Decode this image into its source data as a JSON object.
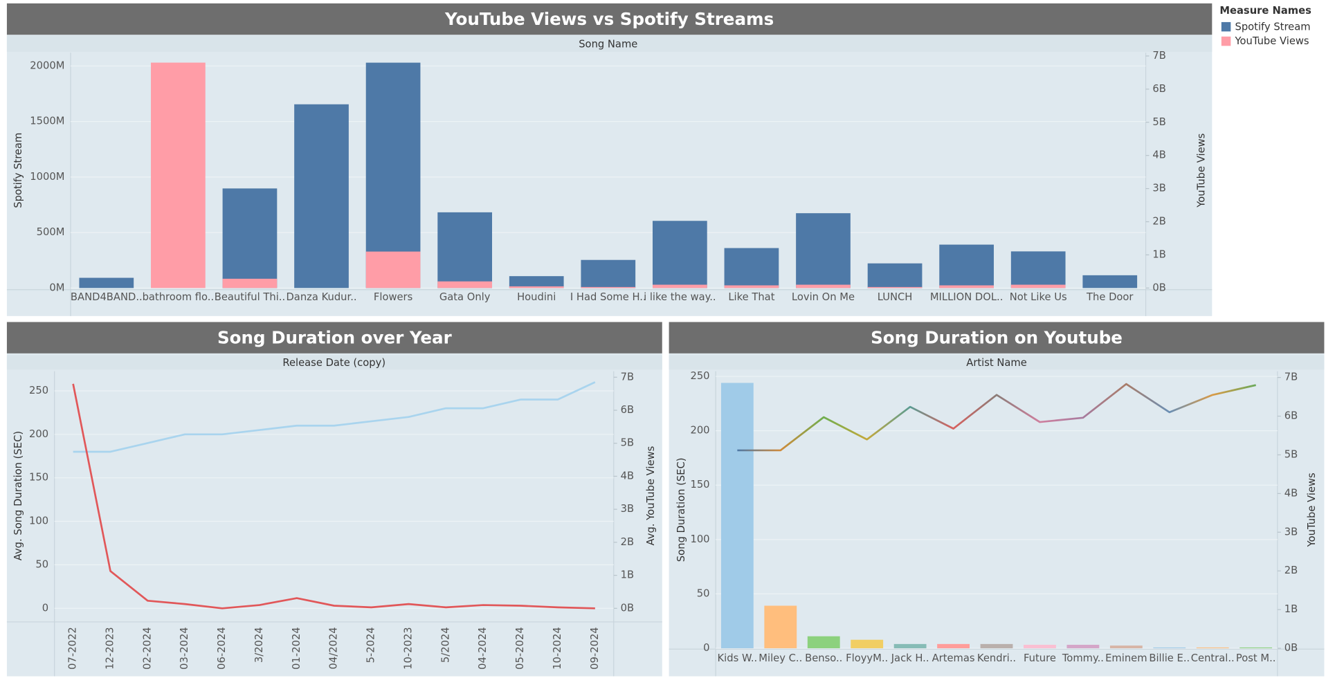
{
  "chart_data": [
    {
      "type": "bar",
      "title": "YouTube Views vs Spotify Streams",
      "header": "Song Name",
      "ylabel": "Spotify Stream",
      "y2label": "YouTube Views",
      "legend_title": "Measure Names",
      "categories": [
        "BAND4BAND..",
        "bathroom flo..",
        "Beautiful Thi..",
        "Danza Kudur..",
        "Flowers",
        "Gata Only",
        "Houdini",
        "I Had Some H..",
        "i like the way..",
        "Like That",
        "Lovin On Me",
        "LUNCH",
        "MILLION DOL..",
        "Not Like Us",
        "The Door"
      ],
      "series": [
        {
          "name": "Spotify Stream",
          "color": "#4e79a7",
          "values": [
            92,
            null,
            897,
            1655,
            2030,
            682,
            107,
            253,
            605,
            360,
            674,
            222,
            391,
            330,
            115
          ]
        },
        {
          "name": "YouTube Views",
          "color": "#ff9da7",
          "axis": "y2",
          "values": [
            0,
            6.8,
            0.28,
            0,
            1.1,
            0.2,
            0.05,
            0.03,
            0.1,
            0.08,
            0.1,
            0.03,
            0.08,
            0.1,
            0
          ]
        }
      ],
      "ylim": [
        0,
        2120
      ],
      "yticks": [
        {
          "value": 0,
          "label": "0M"
        },
        {
          "value": 500,
          "label": "500M"
        },
        {
          "value": 1000,
          "label": "1000M"
        },
        {
          "value": 1500,
          "label": "1500M"
        },
        {
          "value": 2000,
          "label": "2000M"
        }
      ],
      "y2lim": [
        0,
        7.1
      ],
      "y2ticks": [
        {
          "value": 0,
          "label": "0B"
        },
        {
          "value": 1,
          "label": "1B"
        },
        {
          "value": 2,
          "label": "2B"
        },
        {
          "value": 3,
          "label": "3B"
        },
        {
          "value": 4,
          "label": "4B"
        },
        {
          "value": 5,
          "label": "5B"
        },
        {
          "value": 6,
          "label": "6B"
        },
        {
          "value": 7,
          "label": "7B"
        }
      ],
      "grid": true
    },
    {
      "type": "line",
      "title": "Song Duration over Year",
      "header": "Release Date (copy)",
      "ylabel": "Avg. Song Duration (SEC)",
      "y2label": "Avg. YouTube Views",
      "categories": [
        "07-2022",
        "12-2023",
        "02-2024",
        "03-2024",
        "06-2024",
        "3/2024",
        "01-2024",
        "04/2024",
        "5-2024",
        "10-2023",
        "5/2024",
        "04-2024",
        "05-2024",
        "10-2024",
        "09-2024"
      ],
      "series": [
        {
          "color": "#a9d4ee",
          "values": [
            180,
            180,
            190,
            200,
            200,
            205,
            210,
            210,
            215,
            220,
            230,
            230,
            240,
            240,
            260
          ]
        },
        {
          "color": "#e15759",
          "axis": "y2",
          "values": [
            6.8,
            1.13,
            0.23,
            0.13,
            0,
            0.1,
            0.31,
            0.08,
            0.03,
            0.13,
            0.03,
            0.1,
            0.08,
            0.03,
            0
          ]
        }
      ],
      "ylim": [
        -13.7,
        272.5
      ],
      "yticks": [
        0,
        50,
        100,
        150,
        200,
        250
      ],
      "y2lim": [
        -0.36,
        7.18
      ],
      "y2ticks": [
        {
          "value": 0,
          "label": "0B"
        },
        {
          "value": 1,
          "label": "1B"
        },
        {
          "value": 2,
          "label": "2B"
        },
        {
          "value": 3,
          "label": "3B"
        },
        {
          "value": 4,
          "label": "4B"
        },
        {
          "value": 5,
          "label": "5B"
        },
        {
          "value": 6,
          "label": "6B"
        },
        {
          "value": 7,
          "label": "7B"
        }
      ],
      "grid": true
    },
    {
      "type": "combo",
      "title": "Song Duration on Youtube",
      "header": "Artist Name",
      "ylabel": "Song Duration (SEC)",
      "y2label": "YouTube Views",
      "categories": [
        "Kids W..",
        "Miley C..",
        "Benso..",
        "FloyyM..",
        "Jack H..",
        "Artemas",
        "Kendri..",
        "Future",
        "Tommy..",
        "Eminem",
        "Billie E..",
        "Central..",
        "Post M.."
      ],
      "series": [
        {
          "type": "bar",
          "axis": "y2",
          "colors": [
            "#a0cbe8",
            "#ffbe7d",
            "#8cd17d",
            "#f1ce63",
            "#86bcb6",
            "#ff9d9a",
            "#bab0ac",
            "#fabfd2",
            "#d4a6c8",
            "#d7b5a6",
            "#a0cbe8",
            "#ffbe7d",
            "#8cd17d"
          ],
          "values": [
            6.86,
            1.1,
            0.31,
            0.22,
            0.11,
            0.11,
            0.11,
            0.09,
            0.09,
            0.07,
            0.02,
            0.02,
            0.02
          ]
        },
        {
          "type": "line",
          "colors": [
            "#4e79a7",
            "#d08a3a",
            "#6fae4f",
            "#c4a83a",
            "#5a9c93",
            "#d8605e",
            "#8a7c77",
            "#cf7f9e",
            "#a77b9e",
            "#a97c68",
            "#6a8fb5",
            "#d99a45",
            "#6aa95a"
          ],
          "values": [
            182,
            182,
            212.5,
            192,
            222,
            202,
            233,
            208,
            212,
            243,
            217,
            233,
            242
          ]
        }
      ],
      "ylim": [
        0,
        254.7
      ],
      "yticks": [
        0,
        50,
        100,
        150,
        200,
        250
      ],
      "y2lim": [
        0,
        7.16
      ],
      "y2ticks": [
        {
          "value": 0,
          "label": "0B"
        },
        {
          "value": 1,
          "label": "1B"
        },
        {
          "value": 2,
          "label": "2B"
        },
        {
          "value": 3,
          "label": "3B"
        },
        {
          "value": 4,
          "label": "4B"
        },
        {
          "value": 5,
          "label": "5B"
        },
        {
          "value": 6,
          "label": "6B"
        },
        {
          "value": 7,
          "label": "7B"
        }
      ],
      "grid": true
    }
  ]
}
